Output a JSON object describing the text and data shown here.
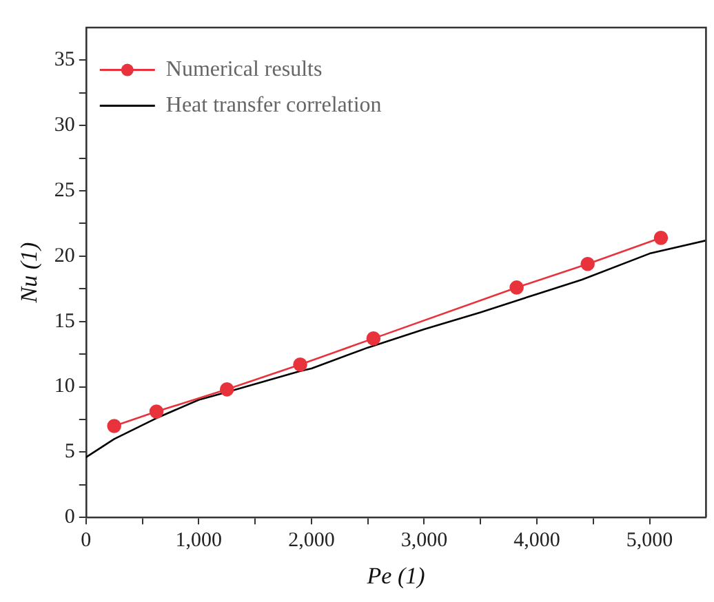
{
  "chart_data": {
    "type": "line",
    "xlabel": "Pe (1)",
    "ylabel": "Nu (1)",
    "xlim": [
      0,
      5500
    ],
    "ylim": [
      0,
      37.5
    ],
    "xticks": [
      {
        "value": 0,
        "label": "0"
      },
      {
        "value": 500,
        "label": null
      },
      {
        "value": 1000,
        "label": "1,000"
      },
      {
        "value": 1500,
        "label": null
      },
      {
        "value": 2000,
        "label": "2,000"
      },
      {
        "value": 2500,
        "label": null
      },
      {
        "value": 3000,
        "label": "3,000"
      },
      {
        "value": 3500,
        "label": null
      },
      {
        "value": 4000,
        "label": "4,000"
      },
      {
        "value": 4500,
        "label": null
      },
      {
        "value": 5000,
        "label": "5,000"
      }
    ],
    "yticks": [
      0,
      {
        "value": 2.5,
        "label": null
      },
      5,
      {
        "value": 7.5,
        "label": null
      },
      10,
      {
        "value": 12.5,
        "label": null
      },
      15,
      {
        "value": 17.5,
        "label": null
      },
      20,
      {
        "value": 22.5,
        "label": null
      },
      25,
      {
        "value": 27.5,
        "label": null
      },
      30,
      {
        "value": 32.5,
        "label": null
      },
      35
    ],
    "grid": false,
    "legend": "top left",
    "series": [
      {
        "name": "Numerical results",
        "color": "#e8323c",
        "marker": "circle",
        "x": [
          250,
          625,
          1250,
          1900,
          2550,
          3820,
          4450,
          5100
        ],
        "values": [
          7.0,
          8.1,
          9.8,
          11.7,
          13.7,
          17.6,
          19.4,
          21.4
        ]
      },
      {
        "name": "Heat transfer correlation",
        "color": "#000000",
        "marker": "none",
        "x": [
          0,
          250,
          625,
          1000,
          1250,
          1900,
          2000,
          2500,
          3000,
          3500,
          4000,
          4400,
          5000,
          5500
        ],
        "values": [
          4.6,
          6.0,
          7.6,
          9.0,
          9.6,
          11.2,
          11.4,
          13.0,
          14.4,
          15.7,
          17.1,
          18.2,
          20.2,
          21.2
        ]
      }
    ]
  }
}
